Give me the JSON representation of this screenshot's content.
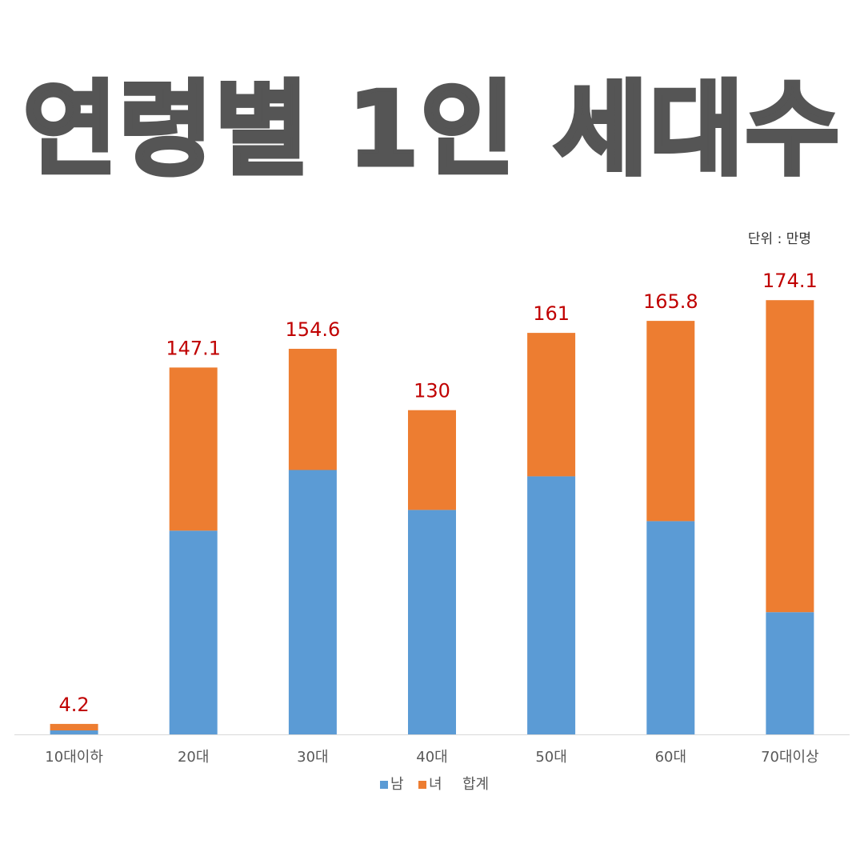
{
  "title": "연령별 1인 세대수",
  "unit_label": "단위 : 만명",
  "colors": {
    "male": "#5b9bd5",
    "female": "#ed7d31",
    "total": "#c00000",
    "axis": "#d9d9d9"
  },
  "chart_data": {
    "type": "bar",
    "stacked": true,
    "categories": [
      "10대이하",
      "20대",
      "30대",
      "40대",
      "50대",
      "60대",
      "70대이상"
    ],
    "series": [
      {
        "name": "남",
        "values": [
          1.6,
          81.7,
          106.0,
          90.0,
          103.5,
          85.5,
          49.0
        ]
      },
      {
        "name": "녀",
        "values": [
          2.6,
          65.4,
          48.6,
          40.0,
          57.5,
          80.3,
          125.1
        ]
      }
    ],
    "totals": {
      "name": "합계",
      "values": [
        4.2,
        147.1,
        154.6,
        130,
        161,
        165.8,
        174.1
      ]
    },
    "legend_position": "bottom",
    "grid": false,
    "ylim": [
      0,
      187
    ]
  }
}
